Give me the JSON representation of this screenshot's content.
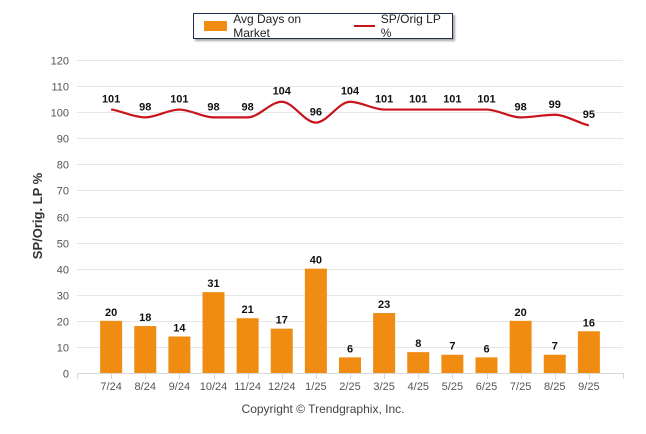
{
  "chart_data": {
    "type": "bar",
    "title": "",
    "xlabel": "",
    "ylabel": "SP/Orig. LP %",
    "ylim": [
      0,
      120
    ],
    "yticks": [
      0,
      10,
      20,
      30,
      40,
      50,
      60,
      70,
      80,
      90,
      100,
      110,
      120
    ],
    "grid": true,
    "legend_position": "top-center",
    "categories": [
      "7/24",
      "8/24",
      "9/24",
      "10/24",
      "11/24",
      "12/24",
      "1/25",
      "2/25",
      "3/25",
      "4/25",
      "5/25",
      "6/25",
      "7/25",
      "8/25",
      "9/25"
    ],
    "series": [
      {
        "name": "Avg Days on Market",
        "type": "bar",
        "color": "#f08c12",
        "values": [
          20,
          18,
          14,
          31,
          21,
          17,
          40,
          6,
          23,
          8,
          7,
          6,
          20,
          7,
          16
        ]
      },
      {
        "name": "SP/Orig LP %",
        "type": "line",
        "color": "#c8141a",
        "values": [
          101,
          98,
          101,
          98,
          98,
          104,
          96,
          104,
          101,
          101,
          101,
          101,
          98,
          99,
          95
        ]
      }
    ]
  },
  "footer": {
    "copyright": "Copyright © Trendgraphix, Inc."
  }
}
